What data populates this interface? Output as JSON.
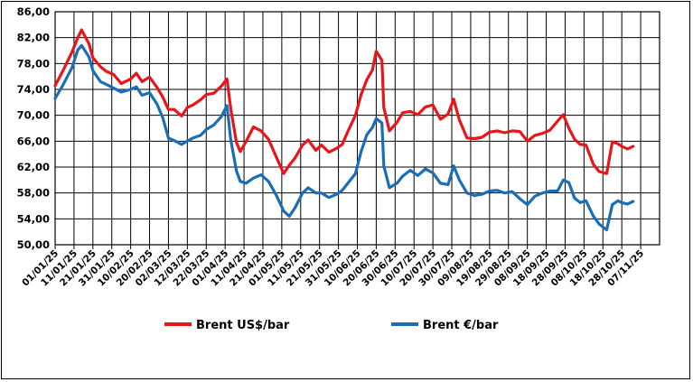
{
  "chart_data": {
    "type": "line",
    "title": "",
    "xlabel": "",
    "ylabel": "",
    "ylim": [
      50,
      86
    ],
    "y_ticks": [
      "50,00",
      "54,00",
      "58,00",
      "62,00",
      "66,00",
      "70,00",
      "74,00",
      "78,00",
      "82,00",
      "86,00"
    ],
    "x_ticks": [
      "01/01/25",
      "11/01/25",
      "21/01/25",
      "31/01/25",
      "10/02/25",
      "20/02/25",
      "02/03/25",
      "12/03/25",
      "22/03/25",
      "01/04/25",
      "11/04/25",
      "21/04/25",
      "01/05/25",
      "11/05/25",
      "21/05/25",
      "31/05/25",
      "10/06/25",
      "20/06/25",
      "30/06/25",
      "10/07/25",
      "20/07/25",
      "30/07/25",
      "09/08/25",
      "19/08/25",
      "29/08/25",
      "08/09/25",
      "18/09/25",
      "28/09/25",
      "08/10/25",
      "18/10/25",
      "28/10/25",
      "07/11/25"
    ],
    "grid": true,
    "legend": "bottom",
    "series": [
      {
        "name": "Brent US$/bar",
        "color": "#e8161a",
        "x": [
          "2025-01-01",
          "2025-01-05",
          "2025-01-10",
          "2025-01-13",
          "2025-01-15",
          "2025-01-19",
          "2025-01-21",
          "2025-01-25",
          "2025-01-28",
          "2025-02-01",
          "2025-02-05",
          "2025-02-10",
          "2025-02-13",
          "2025-02-16",
          "2025-02-20",
          "2025-02-24",
          "2025-02-27",
          "2025-03-02",
          "2025-03-05",
          "2025-03-09",
          "2025-03-12",
          "2025-03-15",
          "2025-03-19",
          "2025-03-22",
          "2025-03-26",
          "2025-03-30",
          "2025-04-02",
          "2025-04-04",
          "2025-04-07",
          "2025-04-09",
          "2025-04-12",
          "2025-04-16",
          "2025-04-20",
          "2025-04-24",
          "2025-04-28",
          "2025-05-02",
          "2025-05-05",
          "2025-05-08",
          "2025-05-12",
          "2025-05-15",
          "2025-05-19",
          "2025-05-22",
          "2025-05-26",
          "2025-05-30",
          "2025-06-02",
          "2025-06-05",
          "2025-06-09",
          "2025-06-12",
          "2025-06-15",
          "2025-06-18",
          "2025-06-20",
          "2025-06-23",
          "2025-06-24",
          "2025-06-27",
          "2025-07-01",
          "2025-07-04",
          "2025-07-08",
          "2025-07-12",
          "2025-07-16",
          "2025-07-20",
          "2025-07-24",
          "2025-07-28",
          "2025-07-31",
          "2025-08-03",
          "2025-08-07",
          "2025-08-11",
          "2025-08-15",
          "2025-08-19",
          "2025-08-23",
          "2025-08-27",
          "2025-08-31",
          "2025-09-04",
          "2025-09-08",
          "2025-09-12",
          "2025-09-16",
          "2025-09-20",
          "2025-09-24",
          "2025-09-27",
          "2025-09-30",
          "2025-10-03",
          "2025-10-06",
          "2025-10-09",
          "2025-10-13",
          "2025-10-16",
          "2025-10-20",
          "2025-10-23",
          "2025-10-26",
          "2025-10-28",
          "2025-10-31",
          "2025-11-03"
        ],
        "values": [
          74.6,
          76.8,
          79.8,
          82.0,
          83.2,
          81.0,
          78.9,
          77.5,
          76.8,
          76.3,
          74.9,
          75.6,
          76.5,
          75.2,
          75.9,
          74.3,
          72.8,
          70.9,
          70.9,
          69.9,
          71.2,
          71.6,
          72.4,
          73.2,
          73.4,
          74.5,
          75.6,
          71.0,
          65.8,
          64.4,
          65.9,
          68.2,
          67.6,
          66.3,
          63.6,
          61.0,
          62.3,
          63.4,
          65.4,
          66.2,
          64.6,
          65.4,
          64.3,
          64.9,
          65.5,
          67.5,
          70.0,
          73.2,
          75.5,
          77.0,
          79.9,
          78.5,
          71.2,
          67.6,
          68.9,
          70.4,
          70.6,
          70.1,
          71.3,
          71.6,
          69.4,
          70.2,
          72.5,
          69.3,
          66.5,
          66.4,
          66.6,
          67.4,
          67.6,
          67.3,
          67.6,
          67.5,
          66.0,
          66.9,
          67.2,
          67.7,
          69.1,
          70.1,
          68.0,
          66.3,
          65.5,
          65.4,
          62.4,
          61.3,
          61.0,
          65.9,
          65.6,
          65.2,
          64.8,
          65.2
        ]
      },
      {
        "name": "Brent €/bar",
        "color": "#1a6eb5",
        "x": [
          "2025-01-01",
          "2025-01-05",
          "2025-01-10",
          "2025-01-13",
          "2025-01-15",
          "2025-01-19",
          "2025-01-21",
          "2025-01-25",
          "2025-01-28",
          "2025-02-01",
          "2025-02-05",
          "2025-02-10",
          "2025-02-13",
          "2025-02-16",
          "2025-02-20",
          "2025-02-24",
          "2025-02-27",
          "2025-03-02",
          "2025-03-05",
          "2025-03-09",
          "2025-03-12",
          "2025-03-15",
          "2025-03-19",
          "2025-03-22",
          "2025-03-26",
          "2025-03-30",
          "2025-04-02",
          "2025-04-04",
          "2025-04-07",
          "2025-04-09",
          "2025-04-12",
          "2025-04-16",
          "2025-04-20",
          "2025-04-24",
          "2025-04-28",
          "2025-05-02",
          "2025-05-05",
          "2025-05-08",
          "2025-05-12",
          "2025-05-15",
          "2025-05-19",
          "2025-05-22",
          "2025-05-26",
          "2025-05-30",
          "2025-06-02",
          "2025-06-05",
          "2025-06-09",
          "2025-06-12",
          "2025-06-15",
          "2025-06-18",
          "2025-06-20",
          "2025-06-23",
          "2025-06-24",
          "2025-06-27",
          "2025-07-01",
          "2025-07-04",
          "2025-07-08",
          "2025-07-12",
          "2025-07-16",
          "2025-07-20",
          "2025-07-24",
          "2025-07-28",
          "2025-07-31",
          "2025-08-03",
          "2025-08-07",
          "2025-08-11",
          "2025-08-15",
          "2025-08-19",
          "2025-08-23",
          "2025-08-27",
          "2025-08-31",
          "2025-09-04",
          "2025-09-08",
          "2025-09-12",
          "2025-09-16",
          "2025-09-20",
          "2025-09-24",
          "2025-09-27",
          "2025-09-30",
          "2025-10-03",
          "2025-10-06",
          "2025-10-09",
          "2025-10-13",
          "2025-10-16",
          "2025-10-20",
          "2025-10-23",
          "2025-10-26",
          "2025-10-28",
          "2025-10-31",
          "2025-11-03"
        ],
        "values": [
          72.6,
          74.6,
          77.4,
          80.1,
          80.8,
          79.0,
          76.9,
          75.2,
          74.8,
          74.2,
          73.6,
          74.0,
          74.4,
          73.1,
          73.5,
          71.7,
          69.6,
          66.5,
          66.1,
          65.5,
          66.0,
          66.5,
          66.9,
          67.8,
          68.5,
          69.8,
          71.5,
          66.2,
          61.4,
          59.8,
          59.5,
          60.3,
          60.8,
          59.8,
          57.7,
          55.2,
          54.4,
          55.7,
          58.0,
          58.8,
          58.0,
          58.0,
          57.3,
          57.8,
          58.4,
          59.5,
          61.0,
          64.4,
          67.0,
          68.1,
          69.5,
          68.8,
          62.2,
          58.8,
          59.5,
          60.6,
          61.5,
          60.7,
          61.7,
          61.1,
          59.5,
          59.3,
          62.2,
          60.0,
          58.0,
          57.6,
          57.8,
          58.3,
          58.4,
          58.0,
          58.2,
          57.1,
          56.2,
          57.5,
          58.0,
          58.3,
          58.3,
          60.0,
          59.6,
          57.2,
          56.5,
          56.8,
          54.4,
          53.2,
          52.3,
          56.2,
          56.8,
          56.5,
          56.3,
          56.7
        ]
      }
    ]
  }
}
